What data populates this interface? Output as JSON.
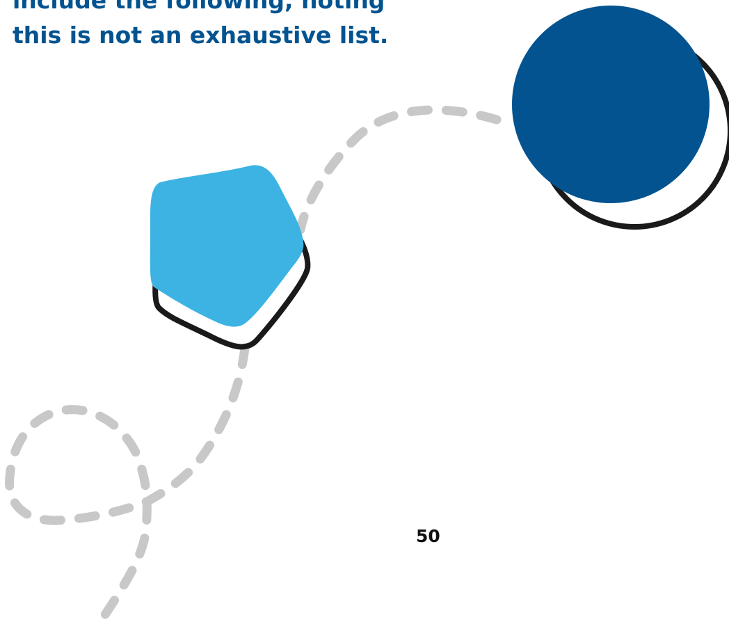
{
  "heading": {
    "line1": "include the following, noting",
    "line2": "this is not an exhaustive list."
  },
  "page_number": "50",
  "colors": {
    "heading": "#02538f",
    "dark_circle": "#02538f",
    "pentagon": "#3db3e4",
    "outline": "#1a1a1a",
    "dashed_path": "#c8c8c8",
    "page_number": "#111111"
  },
  "shapes": [
    "dashed-path",
    "pentagon-shape",
    "circle-shape"
  ]
}
